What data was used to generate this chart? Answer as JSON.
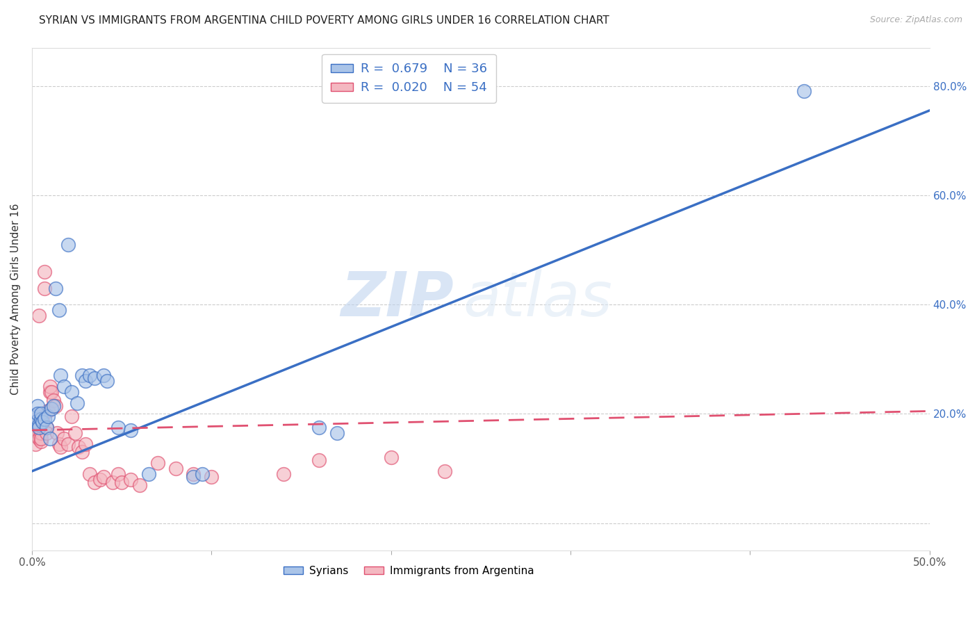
{
  "title": "SYRIAN VS IMMIGRANTS FROM ARGENTINA CHILD POVERTY AMONG GIRLS UNDER 16 CORRELATION CHART",
  "source": "Source: ZipAtlas.com",
  "ylabel": "Child Poverty Among Girls Under 16",
  "xlim": [
    0.0,
    0.5
  ],
  "ylim": [
    -0.05,
    0.87
  ],
  "yticks": [
    0.0,
    0.2,
    0.4,
    0.6,
    0.8
  ],
  "ytick_labels_right": [
    "",
    "20.0%",
    "40.0%",
    "60.0%",
    "80.0%"
  ],
  "xticks": [
    0.0,
    0.1,
    0.2,
    0.3,
    0.4,
    0.5
  ],
  "xtick_labels": [
    "0.0%",
    "",
    "",
    "",
    "",
    "50.0%"
  ],
  "syrian_R": 0.679,
  "syrian_N": 36,
  "argentina_R": 0.02,
  "argentina_N": 54,
  "syrian_color": "#aac4e8",
  "argentina_color": "#f4b8c1",
  "syrian_line_color": "#3a6fc4",
  "argentina_line_color": "#e05070",
  "watermark_zip": "ZIP",
  "watermark_atlas": "atlas",
  "syrian_scatter_x": [
    0.001,
    0.002,
    0.003,
    0.003,
    0.004,
    0.004,
    0.005,
    0.005,
    0.006,
    0.007,
    0.008,
    0.009,
    0.01,
    0.011,
    0.012,
    0.013,
    0.015,
    0.016,
    0.018,
    0.02,
    0.022,
    0.025,
    0.028,
    0.03,
    0.032,
    0.035,
    0.04,
    0.042,
    0.048,
    0.055,
    0.065,
    0.09,
    0.095,
    0.16,
    0.17,
    0.43
  ],
  "syrian_scatter_y": [
    0.195,
    0.185,
    0.215,
    0.2,
    0.18,
    0.175,
    0.19,
    0.2,
    0.185,
    0.19,
    0.175,
    0.195,
    0.155,
    0.21,
    0.215,
    0.43,
    0.39,
    0.27,
    0.25,
    0.51,
    0.24,
    0.22,
    0.27,
    0.26,
    0.27,
    0.265,
    0.27,
    0.26,
    0.175,
    0.17,
    0.09,
    0.085,
    0.09,
    0.175,
    0.165,
    0.79
  ],
  "argentina_scatter_x": [
    0.001,
    0.001,
    0.001,
    0.002,
    0.002,
    0.002,
    0.003,
    0.003,
    0.003,
    0.004,
    0.004,
    0.004,
    0.005,
    0.005,
    0.005,
    0.006,
    0.006,
    0.007,
    0.007,
    0.008,
    0.008,
    0.009,
    0.01,
    0.01,
    0.011,
    0.012,
    0.013,
    0.014,
    0.015,
    0.016,
    0.018,
    0.02,
    0.022,
    0.024,
    0.026,
    0.028,
    0.03,
    0.032,
    0.035,
    0.038,
    0.04,
    0.045,
    0.048,
    0.05,
    0.055,
    0.06,
    0.07,
    0.08,
    0.09,
    0.1,
    0.14,
    0.16,
    0.2,
    0.23
  ],
  "argentina_scatter_y": [
    0.195,
    0.185,
    0.17,
    0.18,
    0.16,
    0.145,
    0.185,
    0.175,
    0.16,
    0.38,
    0.165,
    0.155,
    0.15,
    0.165,
    0.155,
    0.195,
    0.185,
    0.46,
    0.43,
    0.175,
    0.165,
    0.205,
    0.24,
    0.25,
    0.24,
    0.225,
    0.215,
    0.165,
    0.145,
    0.14,
    0.155,
    0.145,
    0.195,
    0.165,
    0.14,
    0.13,
    0.145,
    0.09,
    0.075,
    0.08,
    0.085,
    0.075,
    0.09,
    0.075,
    0.08,
    0.07,
    0.11,
    0.1,
    0.09,
    0.085,
    0.09,
    0.115,
    0.12,
    0.095
  ],
  "syrian_line_x": [
    0.0,
    0.5
  ],
  "syrian_line_y": [
    0.095,
    0.755
  ],
  "argentina_line_x": [
    0.0,
    0.5
  ],
  "argentina_line_y": [
    0.17,
    0.205
  ],
  "grid_color": "#cccccc",
  "bg_color": "#ffffff",
  "title_fontsize": 11,
  "axis_label_fontsize": 11,
  "tick_fontsize": 11
}
